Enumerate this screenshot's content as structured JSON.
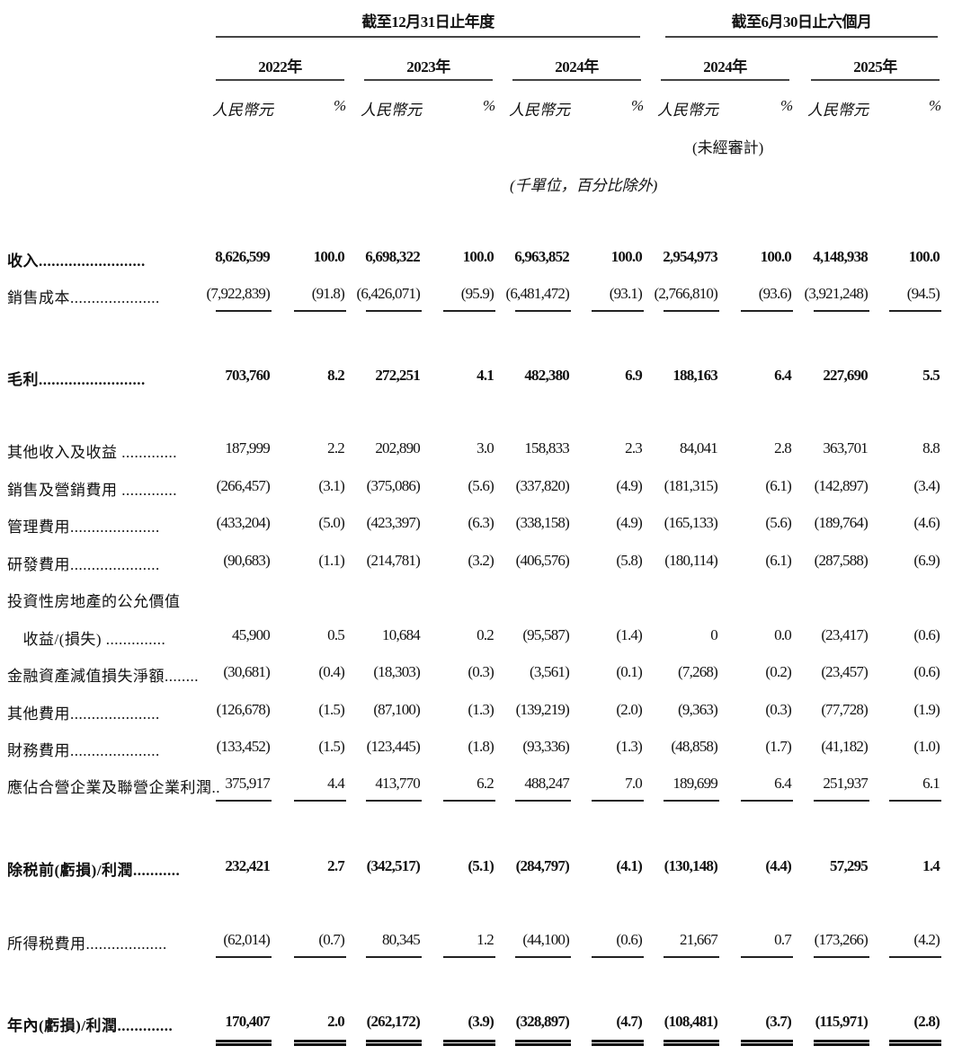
{
  "header": {
    "group_annual": "截至12月31日止年度",
    "group_interim": "截至6月30日止六個月",
    "years": [
      "2022年",
      "2023年",
      "2024年",
      "2024年",
      "2025年"
    ],
    "currency_label": "人民幣元",
    "percent_label": "%",
    "unaudited": "(未經審計)",
    "unit_note": "(千單位，百分比除外)"
  },
  "rows": [
    {
      "label": "收入.........................",
      "bold": true,
      "values": [
        "8,626,599",
        "100.0",
        "6,698,322",
        "100.0",
        "6,963,852",
        "100.0",
        "2,954,973",
        "100.0",
        "4,148,938",
        "100.0"
      ]
    },
    {
      "label": "銷售成本.....................",
      "bold": false,
      "underline": true,
      "values": [
        "(7,922,839)",
        "(91.8)",
        "(6,426,071)",
        "(95.9)",
        "(6,481,472)",
        "(93.1)",
        "(2,766,810)",
        "(93.6)",
        "(3,921,248)",
        "(94.5)"
      ]
    },
    {
      "label": "毛利.........................",
      "bold": true,
      "values": [
        "703,760",
        "8.2",
        "272,251",
        "4.1",
        "482,380",
        "6.9",
        "188,163",
        "6.4",
        "227,690",
        "5.5"
      ]
    },
    {
      "label": "其他收入及收益 .............",
      "bold": false,
      "values": [
        "187,999",
        "2.2",
        "202,890",
        "3.0",
        "158,833",
        "2.3",
        "84,041",
        "2.8",
        "363,701",
        "8.8"
      ]
    },
    {
      "label": "銷售及營銷費用 .............",
      "bold": false,
      "values": [
        "(266,457)",
        "(3.1)",
        "(375,086)",
        "(5.6)",
        "(337,820)",
        "(4.9)",
        "(181,315)",
        "(6.1)",
        "(142,897)",
        "(3.4)"
      ]
    },
    {
      "label": "管理費用.....................",
      "bold": false,
      "values": [
        "(433,204)",
        "(5.0)",
        "(423,397)",
        "(6.3)",
        "(338,158)",
        "(4.9)",
        "(165,133)",
        "(5.6)",
        "(189,764)",
        "(4.6)"
      ]
    },
    {
      "label": "研發費用.....................",
      "bold": false,
      "values": [
        "(90,683)",
        "(1.1)",
        "(214,781)",
        "(3.2)",
        "(406,576)",
        "(5.8)",
        "(180,114)",
        "(6.1)",
        "(287,588)",
        "(6.9)"
      ]
    },
    {
      "label": "投資性房地產的公允價值",
      "bold": false,
      "values": []
    },
    {
      "label": "　收益/(損失) ..............",
      "bold": false,
      "values": [
        "45,900",
        "0.5",
        "10,684",
        "0.2",
        "(95,587)",
        "(1.4)",
        "0",
        "0.0",
        "(23,417)",
        "(0.6)"
      ]
    },
    {
      "label": "金融資產減值損失淨額........",
      "bold": false,
      "values": [
        "(30,681)",
        "(0.4)",
        "(18,303)",
        "(0.3)",
        "(3,561)",
        "(0.1)",
        "(7,268)",
        "(0.2)",
        "(23,457)",
        "(0.6)"
      ]
    },
    {
      "label": "其他費用.....................",
      "bold": false,
      "values": [
        "(126,678)",
        "(1.5)",
        "(87,100)",
        "(1.3)",
        "(139,219)",
        "(2.0)",
        "(9,363)",
        "(0.3)",
        "(77,728)",
        "(1.9)"
      ]
    },
    {
      "label": "財務費用.....................",
      "bold": false,
      "values": [
        "(133,452)",
        "(1.5)",
        "(123,445)",
        "(1.8)",
        "(93,336)",
        "(1.3)",
        "(48,858)",
        "(1.7)",
        "(41,182)",
        "(1.0)"
      ]
    },
    {
      "label": "應佔合營企業及聯營企業利潤..",
      "bold": false,
      "underline": true,
      "values": [
        "375,917",
        "4.4",
        "413,770",
        "6.2",
        "488,247",
        "7.0",
        "189,699",
        "6.4",
        "251,937",
        "6.1"
      ]
    },
    {
      "label": "除税前(虧損)/利潤...........",
      "bold": true,
      "values": [
        "232,421",
        "2.7",
        "(342,517)",
        "(5.1)",
        "(284,797)",
        "(4.1)",
        "(130,148)",
        "(4.4)",
        "57,295",
        "1.4"
      ]
    },
    {
      "label": "所得税費用...................",
      "bold": false,
      "underline": true,
      "values": [
        "(62,014)",
        "(0.7)",
        "80,345",
        "1.2",
        "(44,100)",
        "(0.6)",
        "21,667",
        "0.7",
        "(173,266)",
        "(4.2)"
      ]
    },
    {
      "label": "年內(虧損)/利潤.............",
      "bold": true,
      "double_underline": true,
      "values": [
        "170,407",
        "2.0",
        "(262,172)",
        "(3.9)",
        "(328,897)",
        "(4.7)",
        "(108,481)",
        "(3.7)",
        "(115,971)",
        "(2.8)"
      ]
    }
  ]
}
